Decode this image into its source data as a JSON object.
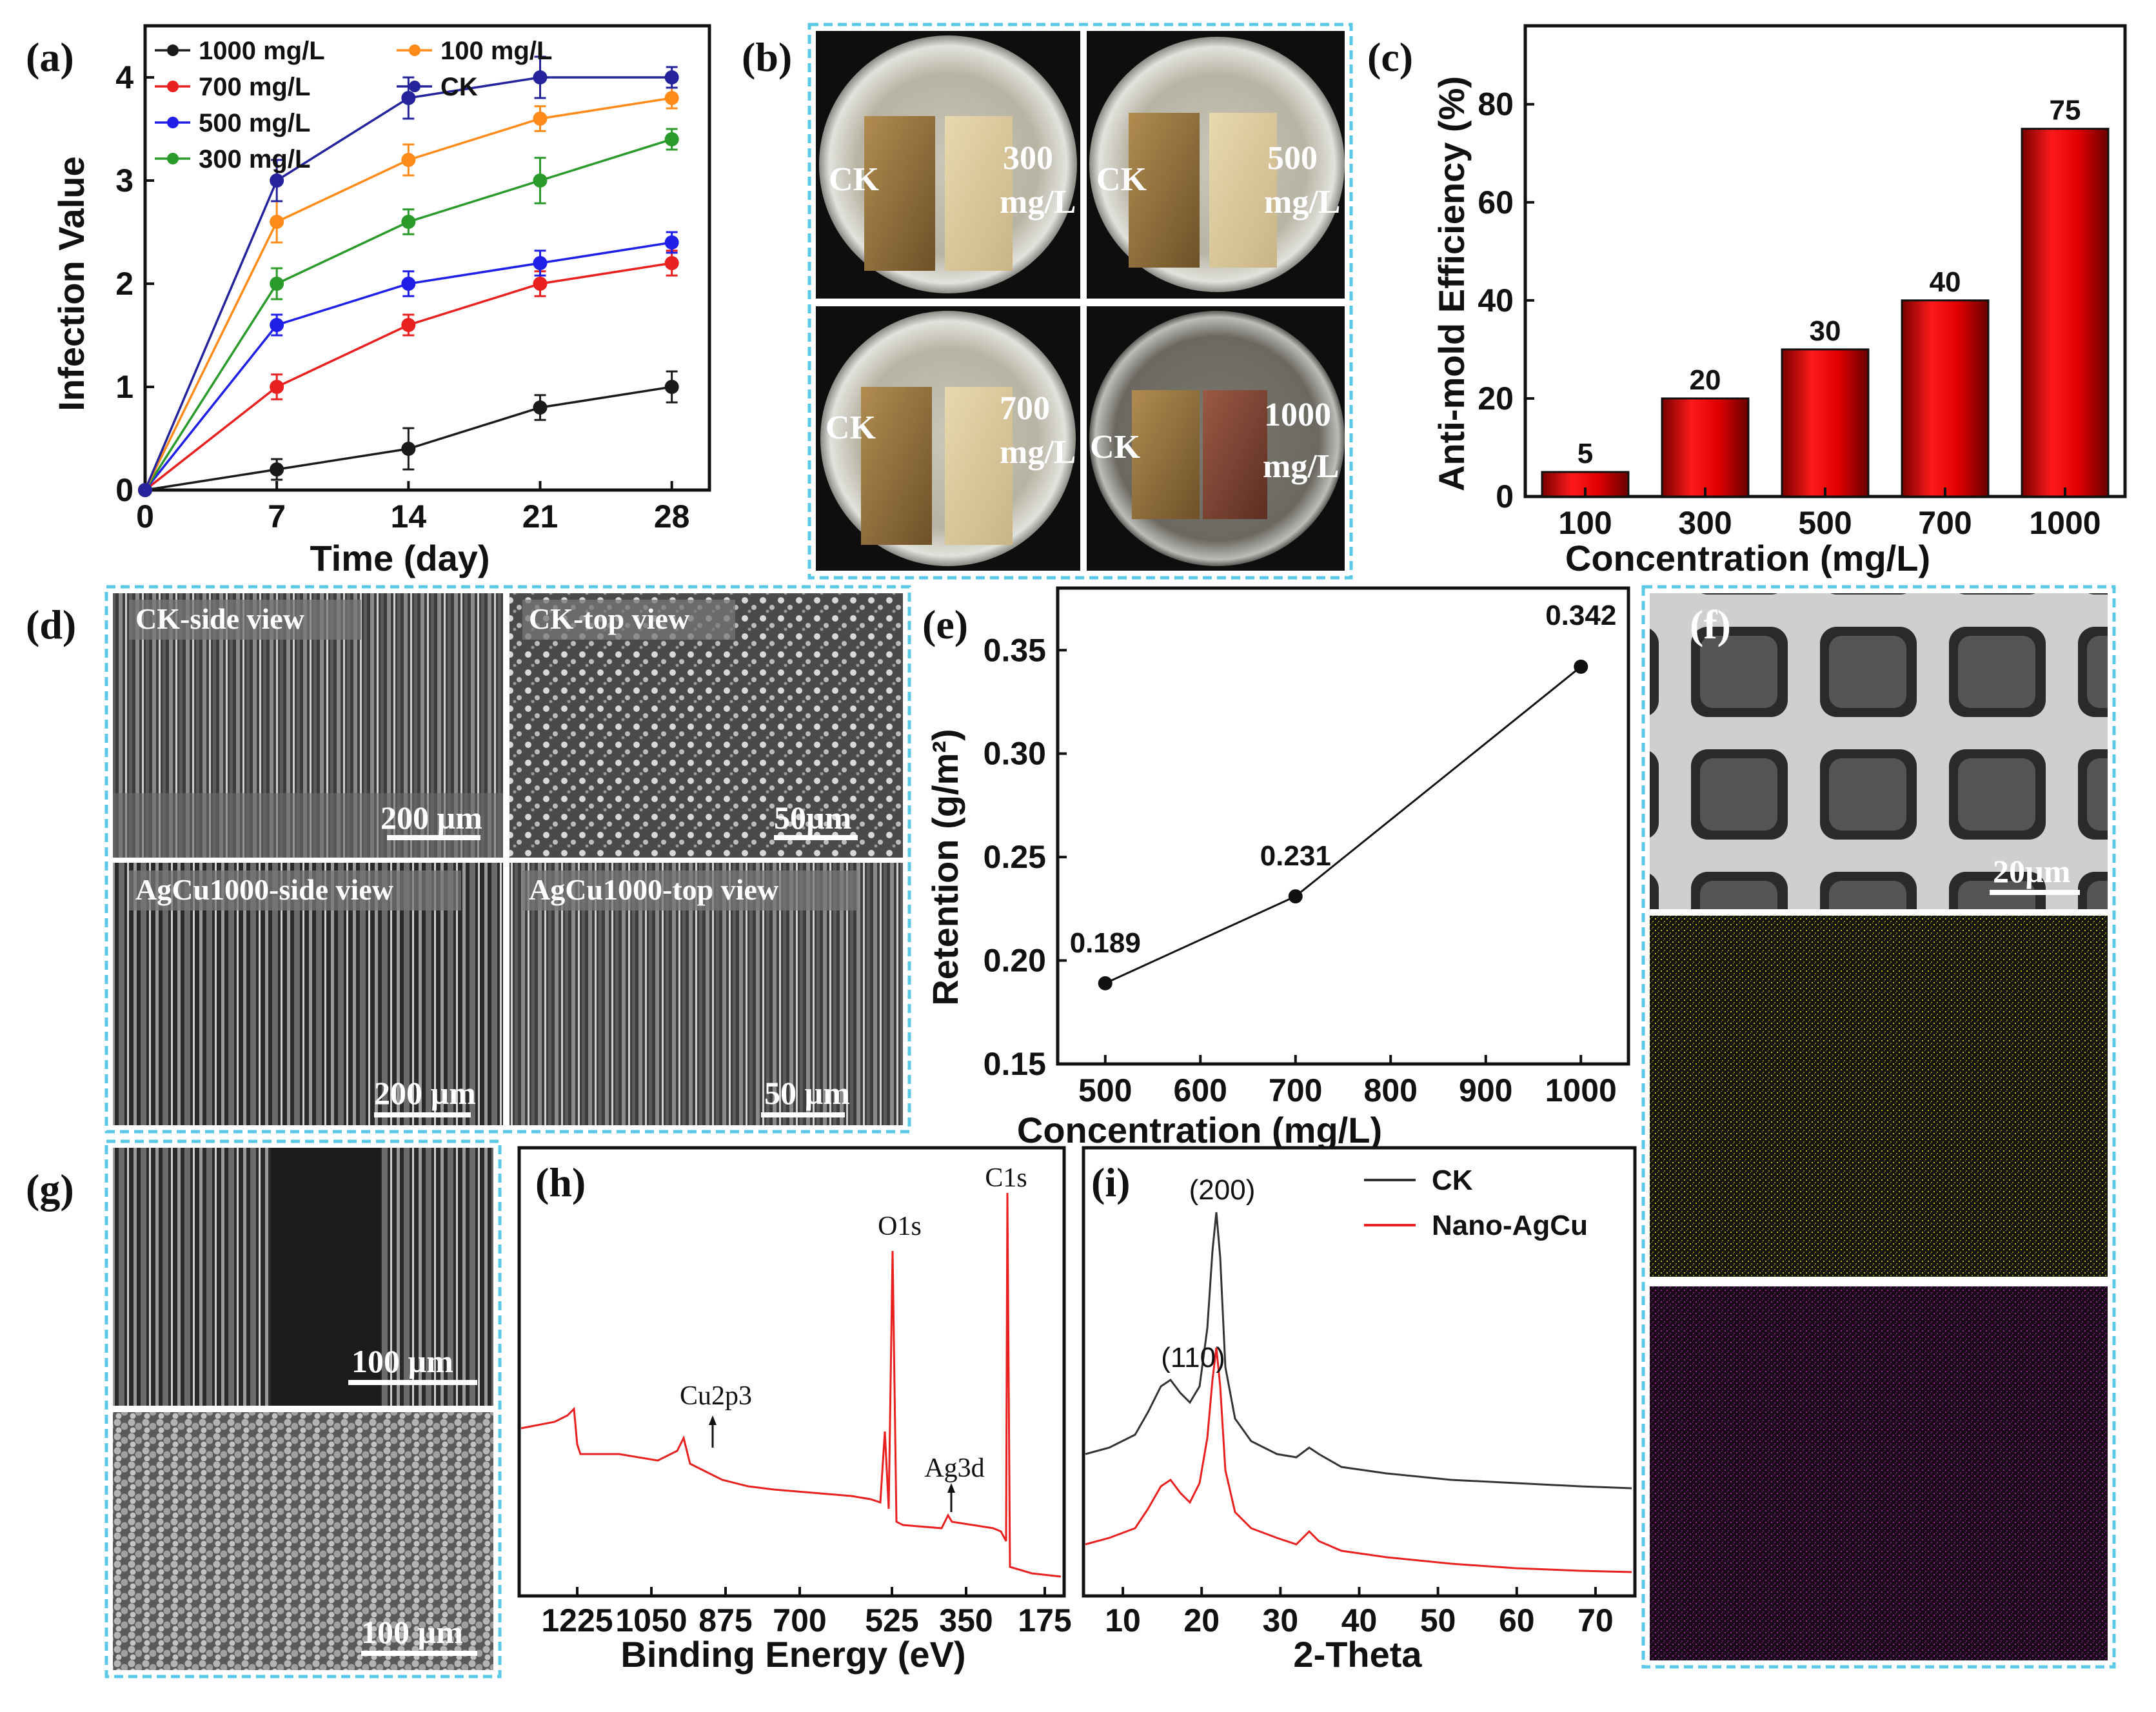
{
  "panels": {
    "a": "(a)",
    "b": "(b)",
    "c": "(c)",
    "d": "(d)",
    "e": "(e)",
    "f": "(f)",
    "g": "(g)",
    "h": "(h)",
    "i": "(i)"
  },
  "colors": {
    "border": "#5bc8e8",
    "black": "#1a1a1a",
    "orange": "#ff8c1a",
    "red": "#e8201f",
    "blue": "#1f1fe8",
    "green": "#2a9a2a",
    "navy": "#24239c",
    "bar": "#e00000",
    "eds_yellow": "#c8c020",
    "eds_purple": "#9a2a9a"
  },
  "chart_data": [
    {
      "id": "a",
      "type": "line",
      "xlabel": "Time (day)",
      "ylabel": "Infection Value",
      "x": [
        0,
        7,
        14,
        21,
        28
      ],
      "xlim": [
        0,
        30
      ],
      "ylim": [
        0,
        4.5
      ],
      "xticks": [
        "0",
        "7",
        "14",
        "21",
        "28"
      ],
      "yticks": [
        "0",
        "1",
        "2",
        "3",
        "4"
      ],
      "series": [
        {
          "name": "1000 mg/L",
          "color": "#1a1a1a",
          "values": [
            0,
            0.2,
            0.4,
            0.8,
            1.0
          ],
          "err": [
            0,
            0.1,
            0.2,
            0.12,
            0.15
          ]
        },
        {
          "name": "700 mg/L",
          "color": "#e8201f",
          "values": [
            0,
            1.0,
            1.6,
            2.0,
            2.2
          ],
          "err": [
            0,
            0.12,
            0.1,
            0.12,
            0.12
          ]
        },
        {
          "name": "500 mg/L",
          "color": "#1f1fe8",
          "values": [
            0,
            1.6,
            2.0,
            2.2,
            2.4
          ],
          "err": [
            0,
            0.1,
            0.12,
            0.12,
            0.1
          ]
        },
        {
          "name": "300 mg/L",
          "color": "#2a9a2a",
          "values": [
            0,
            2.0,
            2.6,
            3.0,
            3.4
          ],
          "err": [
            0,
            0.15,
            0.12,
            0.22,
            0.1
          ]
        },
        {
          "name": "100 mg/L",
          "color": "#ff8c1a",
          "values": [
            0,
            2.6,
            3.2,
            3.6,
            3.8
          ],
          "err": [
            0,
            0.2,
            0.15,
            0.12,
            0.1
          ]
        },
        {
          "name": "CK",
          "color": "#24239c",
          "values": [
            0,
            3.0,
            3.8,
            4.0,
            4.0
          ],
          "err": [
            0,
            0.2,
            0.2,
            0.2,
            0.1
          ]
        }
      ]
    },
    {
      "id": "c",
      "type": "bar",
      "xlabel": "Concentration (mg/L)",
      "ylabel": "Anti-mold Efficiency (%)",
      "categories": [
        "100",
        "300",
        "500",
        "700",
        "1000"
      ],
      "values": [
        5,
        20,
        30,
        40,
        75
      ],
      "labels": [
        "5",
        "20",
        "30",
        "40",
        "75"
      ],
      "ylim": [
        0,
        96
      ],
      "yticks": [
        "0",
        "20",
        "40",
        "60",
        "80"
      ]
    },
    {
      "id": "e",
      "type": "line",
      "xlabel": "Concentration (mg/L)",
      "ylabel": "Retention (g/m²)",
      "x": [
        500,
        700,
        1000
      ],
      "values": [
        0.189,
        0.231,
        0.342
      ],
      "labels": [
        "0.189",
        "0.231",
        "0.342"
      ],
      "xlim": [
        450,
        1050
      ],
      "ylim": [
        0.15,
        0.38
      ],
      "xticks": [
        "500",
        "600",
        "700",
        "800",
        "900",
        "1000"
      ],
      "yticks": [
        "0.15",
        "0.20",
        "0.25",
        "0.30",
        "0.35"
      ]
    },
    {
      "id": "h",
      "type": "line",
      "xlabel": "Binding Energy (eV)",
      "xticks": [
        "1225",
        "1050",
        "875",
        "700",
        "525",
        "350",
        "175"
      ],
      "peaks": [
        "C1s",
        "O1s",
        "Cu2p3",
        "Ag3d"
      ]
    },
    {
      "id": "i",
      "type": "line",
      "xlabel": "2-Theta",
      "xticks": [
        "10",
        "20",
        "30",
        "40",
        "50",
        "60",
        "70"
      ],
      "legend": [
        "CK",
        "Nano-AgCu"
      ],
      "peaks": [
        "(110)",
        "(200)"
      ]
    }
  ],
  "photos": {
    "b": [
      {
        "left": "CK",
        "right_line1": "300",
        "right_line2": "mg/L"
      },
      {
        "left": "CK",
        "right_line1": "500",
        "right_line2": "mg/L"
      },
      {
        "left": "CK",
        "right_line1": "700",
        "right_line2": "mg/L"
      },
      {
        "left": "CK",
        "right_line1": "1000",
        "right_line2": "mg/L"
      }
    ],
    "d": [
      {
        "label": "CK-side view",
        "scale": "200 µm"
      },
      {
        "label": "CK-top view",
        "scale": "50µm"
      },
      {
        "label": "AgCu1000-side view",
        "scale": "200 µm"
      },
      {
        "label": "AgCu1000-top view",
        "scale": "50 µm"
      }
    ],
    "f_scale": "20µm",
    "g_scales": [
      "100 µm",
      "100 µm"
    ]
  }
}
